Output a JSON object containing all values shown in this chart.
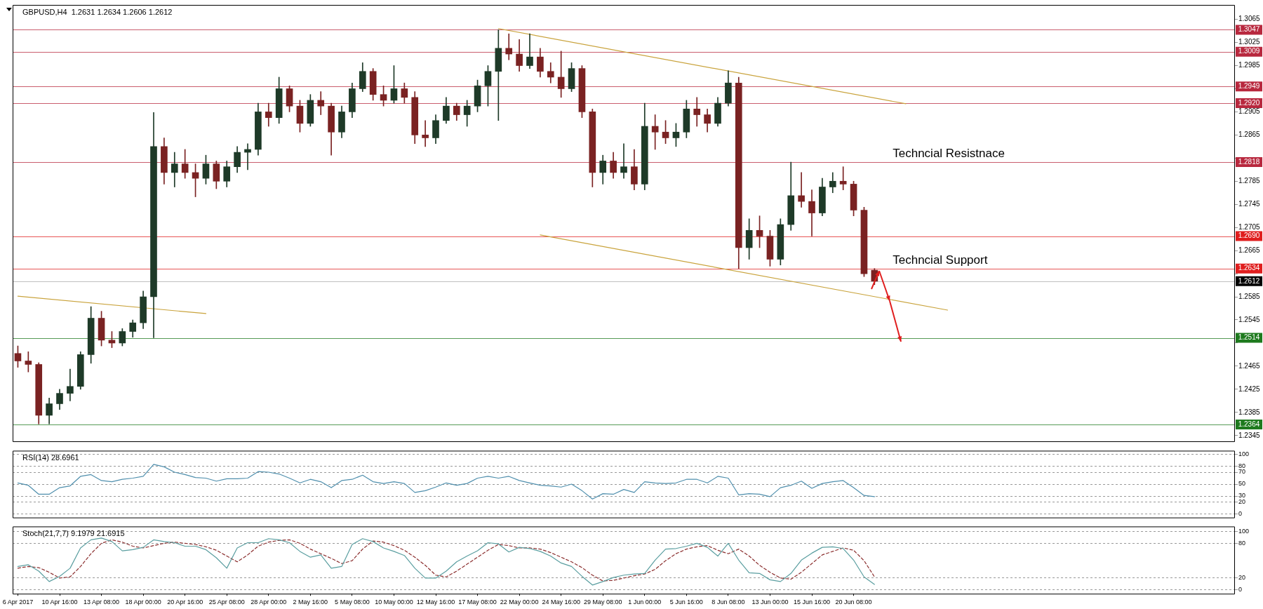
{
  "chart_data": [
    {
      "type": "candlestick",
      "title": "GBPUSD,H4  1.2631 1.2634 1.2606 1.2612",
      "categories": [
        null,
        null,
        null,
        null,
        null,
        null,
        null,
        null,
        null,
        null,
        null,
        null,
        null,
        null,
        null,
        null,
        null,
        null,
        null,
        null,
        null,
        null,
        null,
        null,
        null,
        null,
        null,
        null,
        null,
        null,
        null,
        null,
        null,
        null,
        null,
        null,
        null,
        null,
        null,
        null,
        null,
        null,
        null,
        null,
        null,
        null,
        null,
        null,
        null,
        null,
        null,
        null,
        null,
        null,
        null,
        null,
        null,
        null,
        null,
        null,
        null,
        null,
        null,
        null,
        null,
        null,
        null,
        null,
        null,
        null,
        null,
        null,
        null,
        null,
        null,
        null,
        null,
        null,
        null,
        null,
        null,
        null,
        null,
        null,
        null,
        null,
        null,
        null,
        null,
        null,
        null,
        null,
        null,
        null,
        null,
        null,
        null,
        null,
        null,
        null,
        null,
        null,
        null,
        null,
        null,
        null,
        null,
        null,
        null,
        null,
        null,
        null,
        null,
        null,
        null,
        null,
        null
      ],
      "ohlc": [
        [
          1.2487,
          1.25,
          1.2463,
          1.2474
        ],
        [
          1.2474,
          1.249,
          1.2455,
          1.2468
        ],
        [
          1.2468,
          1.2471,
          1.2365,
          1.238
        ],
        [
          1.238,
          1.241,
          1.2365,
          1.24
        ],
        [
          1.24,
          1.2425,
          1.239,
          1.2418
        ],
        [
          1.2418,
          1.246,
          1.2405,
          1.243
        ],
        [
          1.243,
          1.249,
          1.2425,
          1.2485
        ],
        [
          1.2485,
          1.2568,
          1.247,
          1.2548
        ],
        [
          1.2548,
          1.256,
          1.25,
          1.251
        ],
        [
          1.251,
          1.2525,
          1.2497,
          1.2505
        ],
        [
          1.2505,
          1.253,
          1.25,
          1.2525
        ],
        [
          1.2525,
          1.2545,
          1.2515,
          1.254
        ],
        [
          1.254,
          1.2595,
          1.253,
          1.2585
        ],
        [
          1.2585,
          1.2904,
          1.2514,
          1.2845
        ],
        [
          1.2845,
          1.286,
          1.278,
          1.28
        ],
        [
          1.28,
          1.2835,
          1.2775,
          1.2815
        ],
        [
          1.2815,
          1.284,
          1.279,
          1.28
        ],
        [
          1.28,
          1.2815,
          1.2758,
          1.279
        ],
        [
          1.279,
          1.283,
          1.278,
          1.2815
        ],
        [
          1.2815,
          1.282,
          1.2772,
          1.2785
        ],
        [
          1.2785,
          1.282,
          1.2775,
          1.281
        ],
        [
          1.281,
          1.2845,
          1.28,
          1.2835
        ],
        [
          1.2835,
          1.285,
          1.2805,
          1.284
        ],
        [
          1.284,
          1.292,
          1.283,
          1.2905
        ],
        [
          1.2905,
          1.292,
          1.288,
          1.2895
        ],
        [
          1.2895,
          1.2965,
          1.2885,
          1.2945
        ],
        [
          1.2945,
          1.295,
          1.2905,
          1.2915
        ],
        [
          1.2915,
          1.2925,
          1.287,
          1.2885
        ],
        [
          1.2885,
          1.2935,
          1.288,
          1.2925
        ],
        [
          1.2925,
          1.294,
          1.29,
          1.2915
        ],
        [
          1.2915,
          1.292,
          1.283,
          1.287
        ],
        [
          1.287,
          1.2915,
          1.286,
          1.2905
        ],
        [
          1.2905,
          1.2955,
          1.2895,
          1.2945
        ],
        [
          1.2945,
          1.299,
          1.294,
          1.2975
        ],
        [
          1.2975,
          1.298,
          1.2925,
          1.2935
        ],
        [
          1.2935,
          1.295,
          1.2915,
          1.2925
        ],
        [
          1.2925,
          1.2985,
          1.292,
          1.2945
        ],
        [
          1.2945,
          1.2955,
          1.292,
          1.293
        ],
        [
          1.293,
          1.294,
          1.285,
          1.2865
        ],
        [
          1.2865,
          1.289,
          1.2845,
          1.286
        ],
        [
          1.286,
          1.29,
          1.285,
          1.289
        ],
        [
          1.289,
          1.293,
          1.2885,
          1.2915
        ],
        [
          1.2915,
          1.292,
          1.289,
          1.29
        ],
        [
          1.29,
          1.2925,
          1.288,
          1.2915
        ],
        [
          1.2915,
          1.296,
          1.2905,
          1.295
        ],
        [
          1.295,
          1.2985,
          1.2915,
          1.2975
        ],
        [
          1.2975,
          1.3047,
          1.289,
          1.3015
        ],
        [
          1.3015,
          1.304,
          1.2995,
          1.3005
        ],
        [
          1.3005,
          1.303,
          1.2975,
          1.2985
        ],
        [
          1.2985,
          1.304,
          1.298,
          1.3
        ],
        [
          1.3,
          1.3015,
          1.2965,
          1.2975
        ],
        [
          1.2975,
          1.299,
          1.2955,
          1.2965
        ],
        [
          1.2965,
          1.301,
          1.293,
          1.2945
        ],
        [
          1.2945,
          1.299,
          1.294,
          1.298
        ],
        [
          1.298,
          1.2985,
          1.2895,
          1.2905
        ],
        [
          1.2905,
          1.291,
          1.2775,
          1.28
        ],
        [
          1.28,
          1.283,
          1.278,
          1.282
        ],
        [
          1.282,
          1.2835,
          1.279,
          1.28
        ],
        [
          1.28,
          1.285,
          1.279,
          1.281
        ],
        [
          1.281,
          1.284,
          1.277,
          1.278
        ],
        [
          1.278,
          1.292,
          1.277,
          1.288
        ],
        [
          1.288,
          1.29,
          1.284,
          1.287
        ],
        [
          1.287,
          1.289,
          1.285,
          1.286
        ],
        [
          1.286,
          1.2885,
          1.2845,
          1.287
        ],
        [
          1.287,
          1.2925,
          1.286,
          1.291
        ],
        [
          1.291,
          1.293,
          1.288,
          1.29
        ],
        [
          1.29,
          1.291,
          1.287,
          1.2885
        ],
        [
          1.2885,
          1.293,
          1.288,
          1.292
        ],
        [
          1.292,
          1.2976,
          1.2915,
          1.2955
        ],
        [
          1.2955,
          1.2965,
          1.2634,
          1.267
        ],
        [
          1.267,
          1.272,
          1.265,
          1.27
        ],
        [
          1.27,
          1.2725,
          1.267,
          1.269
        ],
        [
          1.269,
          1.27,
          1.2638,
          1.265
        ],
        [
          1.265,
          1.272,
          1.264,
          1.271
        ],
        [
          1.271,
          1.2818,
          1.27,
          1.276
        ],
        [
          1.276,
          1.28,
          1.274,
          1.275
        ],
        [
          1.275,
          1.277,
          1.269,
          1.273
        ],
        [
          1.273,
          1.279,
          1.2725,
          1.2775
        ],
        [
          1.2775,
          1.28,
          1.2765,
          1.2785
        ],
        [
          1.2785,
          1.281,
          1.277,
          1.278
        ],
        [
          1.278,
          1.2785,
          1.2725,
          1.2735
        ],
        [
          1.2735,
          1.274,
          1.262,
          1.2625
        ],
        [
          1.2631,
          1.2634,
          1.2606,
          1.2612
        ],
        null,
        null,
        null,
        null,
        null,
        null,
        null,
        null,
        null,
        null,
        null,
        null,
        null,
        null,
        null,
        null,
        null,
        null,
        null,
        null,
        null,
        null,
        null,
        null,
        null,
        null,
        null,
        null,
        null,
        null,
        null,
        null,
        null,
        null
      ],
      "colors": [
        "#7a2222",
        "#7a2222",
        "#7a2222",
        "#1e3a28",
        "#1e3a28",
        "#1e3a28",
        "#1e3a28",
        "#1e3a28",
        "#7a2222",
        "#7a2222",
        "#1e3a28",
        "#1e3a28",
        "#1e3a28",
        "#1e3a28",
        "#7a2222",
        "#1e3a28",
        "#7a2222",
        "#7a2222",
        "#1e3a28",
        "#7a2222",
        "#1e3a28",
        "#1e3a28",
        "#1e3a28",
        "#1e3a28",
        "#7a2222",
        "#1e3a28",
        "#7a2222",
        "#7a2222",
        "#1e3a28",
        "#7a2222",
        "#7a2222",
        "#1e3a28",
        "#1e3a28",
        "#1e3a28",
        "#7a2222",
        "#7a2222",
        "#1e3a28",
        "#7a2222",
        "#7a2222",
        "#7a2222",
        "#1e3a28",
        "#1e3a28",
        "#7a2222",
        "#1e3a28",
        "#1e3a28",
        "#1e3a28",
        "#1e3a28",
        "#7a2222",
        "#7a2222",
        "#1e3a28",
        "#7a2222",
        "#7a2222",
        "#7a2222",
        "#1e3a28",
        "#7a2222",
        "#7a2222",
        "#1e3a28",
        "#7a2222",
        "#1e3a28",
        "#7a2222",
        "#1e3a28",
        "#7a2222",
        "#7a2222",
        "#1e3a28",
        "#1e3a28",
        "#7a2222",
        "#7a2222",
        "#1e3a28",
        "#1e3a28",
        "#7a2222",
        "#1e3a28",
        "#7a2222",
        "#7a2222",
        "#1e3a28",
        "#1e3a28",
        "#7a2222",
        "#7a2222",
        "#1e3a28",
        "#1e3a28",
        "#7a2222",
        "#7a2222",
        "#7a2222",
        "#7a2222",
        null,
        null,
        null,
        null,
        null,
        null,
        null,
        null,
        null,
        null,
        null,
        null,
        null,
        null,
        null,
        null,
        null,
        null,
        null,
        null,
        null,
        null,
        null,
        null,
        null,
        null,
        null,
        null,
        null,
        null,
        null,
        null,
        null,
        null
      ],
      "series": [
        {
          "type": "line",
          "color": "#c9a33c",
          "values": [
            null,
            null,
            null,
            null,
            null,
            null,
            null,
            null,
            null,
            null,
            null,
            null,
            null,
            null,
            null,
            null,
            null,
            null,
            null,
            null,
            null,
            null,
            null,
            null,
            null,
            null,
            null,
            null,
            null,
            null,
            null,
            null,
            null,
            null,
            null,
            null,
            null,
            null,
            null,
            null,
            null,
            null,
            null,
            null,
            null,
            null,
            1.3049,
            null,
            null,
            null,
            null,
            null,
            null,
            null,
            null,
            null,
            null,
            null,
            null,
            null,
            null,
            null,
            null,
            null,
            null,
            null,
            null,
            null,
            null,
            null,
            null,
            null,
            null,
            null,
            null,
            null,
            null,
            null,
            null,
            null,
            null,
            null,
            null,
            null,
            null,
            1.2919,
            null,
            null,
            null,
            null,
            null,
            null,
            null,
            null,
            null,
            null,
            null,
            null,
            null,
            null,
            null,
            null,
            null,
            null,
            null,
            null,
            null,
            null,
            null,
            null,
            null,
            null,
            null,
            null,
            null,
            null,
            null
          ]
        },
        {
          "type": "line",
          "color": "#c9a33c",
          "values": [
            null,
            null,
            null,
            null,
            null,
            null,
            null,
            null,
            null,
            null,
            null,
            null,
            null,
            null,
            null,
            null,
            null,
            null,
            null,
            null,
            null,
            null,
            null,
            null,
            null,
            null,
            null,
            null,
            null,
            null,
            null,
            null,
            null,
            null,
            null,
            null,
            null,
            null,
            null,
            null,
            null,
            null,
            null,
            null,
            null,
            null,
            null,
            null,
            null,
            null,
            1.2692,
            null,
            null,
            null,
            null,
            null,
            null,
            null,
            null,
            null,
            null,
            null,
            null,
            null,
            null,
            null,
            null,
            null,
            null,
            null,
            null,
            null,
            null,
            null,
            null,
            null,
            null,
            null,
            null,
            null,
            null,
            null,
            null,
            null,
            null,
            null,
            null,
            null,
            null,
            1.2562,
            null,
            null,
            null,
            null,
            null,
            null,
            null,
            null,
            null,
            null,
            null,
            null,
            null,
            null,
            null,
            null,
            null,
            null,
            null,
            null,
            null,
            null,
            null,
            null,
            null,
            null,
            null
          ]
        },
        {
          "type": "line",
          "color": "#c9a33c",
          "values": [
            1.2586,
            null,
            null,
            null,
            null,
            null,
            null,
            null,
            null,
            null,
            null,
            null,
            null,
            null,
            null,
            null,
            null,
            null,
            1.2556,
            null,
            null,
            null,
            null,
            null,
            null,
            null,
            null,
            null,
            null,
            null,
            null,
            null,
            null,
            null,
            null,
            null,
            null,
            null,
            null,
            null,
            null,
            null,
            null,
            null,
            null,
            null,
            null,
            null,
            null,
            null,
            null,
            null,
            null,
            null,
            null,
            null,
            null,
            null,
            null,
            null,
            null,
            null,
            null,
            null,
            null,
            null,
            null,
            null,
            null,
            null,
            null,
            null,
            null,
            null,
            null,
            null,
            null,
            null,
            null,
            null,
            null,
            null,
            null,
            null,
            null,
            null,
            null,
            null,
            null,
            null,
            null,
            null,
            null,
            null,
            null,
            null,
            null,
            null,
            null,
            null,
            null,
            null,
            null,
            null,
            null,
            null,
            null,
            null,
            null,
            null,
            null,
            null,
            null,
            null,
            null,
            null,
            null
          ]
        }
      ],
      "ylim": [
        1.2335,
        1.309
      ],
      "yticks": [
        1.3065,
        1.3025,
        1.2985,
        {
          "value": 1.2945,
          "label": null
        },
        1.2905,
        1.2865,
        {
          "value": 1.2825,
          "label": null
        },
        1.2785,
        1.2745,
        1.2705,
        1.2665,
        {
          "value": 1.2625,
          "label": null
        },
        1.2585,
        1.2545,
        {
          "value": 1.2505,
          "label": null
        },
        1.2465,
        1.2425,
        1.2385,
        1.2345
      ],
      "tick_labels": "y",
      "ref_lines": [
        {
          "axis": "y",
          "value": 1.3047,
          "label": "1.3047",
          "color": "#b8283e"
        },
        {
          "axis": "y",
          "value": 1.3009,
          "label": "1.3009",
          "color": "#b8283e"
        },
        {
          "axis": "y",
          "value": 1.2949,
          "label": "1.2949",
          "color": "#b8283e"
        },
        {
          "axis": "y",
          "value": 1.292,
          "label": "1.2920",
          "color": "#b8283e"
        },
        {
          "axis": "y",
          "value": 1.2818,
          "label": "1.2818",
          "color": "#b8283e"
        },
        {
          "axis": "y",
          "value": 1.269,
          "label": "1.2690",
          "color": "#e01e1e"
        },
        {
          "axis": "y",
          "value": 1.2634,
          "label": "1.2634",
          "color": "#e01e1e"
        },
        {
          "axis": "y",
          "value": 1.2612,
          "label": "1.2612",
          "color": "#000000"
        },
        {
          "axis": "y",
          "value": 1.2514,
          "label": "1.2514",
          "color": "#1e7a1e"
        },
        {
          "axis": "y",
          "value": 1.2364,
          "label": "1.2364",
          "color": "#1e7a1e"
        }
      ],
      "annotations": [
        {
          "text": "Techncial Resistnace",
          "y": 1.2818
        },
        {
          "text": "Techncial Support",
          "y": 1.2634
        }
      ]
    },
    {
      "type": "line",
      "title": "RSI(14) 28.6961",
      "categories": [
        null,
        null,
        null,
        null,
        null,
        null,
        null,
        null,
        null,
        null,
        null,
        null,
        null,
        null,
        null,
        null,
        null,
        null,
        null,
        null,
        null,
        null,
        null,
        null,
        null,
        null,
        null,
        null,
        null,
        null,
        null,
        null,
        null,
        null,
        null,
        null,
        null,
        null,
        null,
        null,
        null,
        null,
        null,
        null,
        null,
        null,
        null,
        null,
        null,
        null,
        null,
        null,
        null,
        null,
        null,
        null,
        null,
        null,
        null,
        null,
        null,
        null,
        null,
        null,
        null,
        null,
        null,
        null,
        null,
        null,
        null,
        null,
        null,
        null,
        null,
        null,
        null,
        null,
        null,
        null,
        null,
        null,
        null,
        null,
        null,
        null,
        null,
        null,
        null,
        null,
        null,
        null,
        null,
        null,
        null,
        null,
        null,
        null,
        null,
        null,
        null,
        null,
        null,
        null,
        null,
        null,
        null,
        null,
        null,
        null,
        null,
        null,
        null,
        null,
        null,
        null,
        null
      ],
      "series": [
        {
          "color": "#4f8fad",
          "values": [
            52,
            48,
            33,
            33,
            44,
            47,
            63,
            66,
            56,
            54,
            58,
            60,
            63,
            83,
            79,
            70,
            66,
            61,
            60,
            55,
            59,
            59,
            60,
            71,
            70,
            67,
            60,
            52,
            58,
            54,
            44,
            56,
            58,
            65,
            54,
            51,
            54,
            51,
            36,
            39,
            45,
            52,
            48,
            51,
            60,
            63,
            60,
            63,
            56,
            52,
            48,
            47,
            45,
            50,
            39,
            25,
            34,
            33,
            41,
            36,
            54,
            52,
            51,
            52,
            58,
            58,
            52,
            63,
            60,
            32,
            34,
            33,
            29,
            44,
            48,
            55,
            43,
            51,
            54,
            56,
            44,
            31,
            29,
            null,
            null,
            null,
            null,
            null,
            null,
            null,
            null,
            null,
            null,
            null,
            null,
            null,
            null,
            null,
            null,
            null,
            null,
            null,
            null,
            null,
            null,
            null,
            null,
            null,
            null,
            null,
            null,
            null,
            null,
            null,
            null,
            null,
            null
          ]
        }
      ],
      "ylim": [
        -6,
        106
      ],
      "yticks": [
        0,
        20,
        30,
        50,
        70,
        80,
        100
      ],
      "grid": "y",
      "tick_labels": "y"
    },
    {
      "type": "line",
      "title": "Stoch(21,7,7) 9.1979 21.6915",
      "categories": [
        "6 Apr 2017",
        null,
        null,
        null,
        "10 Apr 16:00",
        null,
        null,
        null,
        "13 Apr 08:00",
        null,
        null,
        null,
        "18 Apr 00:00",
        null,
        null,
        null,
        "20 Apr 16:00",
        null,
        null,
        null,
        "25 Apr 08:00",
        null,
        null,
        null,
        "28 Apr 00:00",
        null,
        null,
        null,
        "2 May 16:00",
        null,
        null,
        null,
        "5 May 08:00",
        null,
        null,
        null,
        "10 May 00:00",
        null,
        null,
        null,
        "12 May 16:00",
        null,
        null,
        null,
        "17 May 08:00",
        null,
        null,
        null,
        "22 May 00:00",
        null,
        null,
        null,
        "24 May 16:00",
        null,
        null,
        null,
        "29 May 08:00",
        null,
        null,
        null,
        "1 Jun 00:00",
        null,
        null,
        null,
        "5 Jun 16:00",
        null,
        null,
        null,
        "8 Jun 08:00",
        null,
        null,
        null,
        "13 Jun 00:00",
        null,
        null,
        null,
        "15 Jun 16:00",
        null,
        null,
        null,
        "20 Jun 08:00",
        null,
        null,
        null,
        null,
        null,
        null,
        null,
        null,
        null,
        null,
        null,
        null,
        null,
        null,
        null,
        null,
        null,
        null,
        null,
        null,
        null,
        null,
        null,
        null,
        null,
        null,
        null,
        null,
        null,
        null,
        null,
        null,
        null,
        null,
        null,
        null
      ],
      "series": [
        {
          "color": "#5a9ea0",
          "values": [
            40,
            43,
            32,
            14,
            23,
            37,
            72,
            86,
            89,
            83,
            67,
            69,
            73,
            86,
            83,
            81,
            75,
            75,
            69,
            55,
            37,
            72,
            81,
            81,
            88,
            86,
            81,
            66,
            56,
            60,
            37,
            40,
            78,
            88,
            83,
            72,
            66,
            59,
            37,
            20,
            20,
            32,
            48,
            58,
            67,
            81,
            79,
            65,
            73,
            71,
            66,
            58,
            46,
            40,
            23,
            8,
            14,
            21,
            25,
            27,
            28,
            51,
            70,
            71,
            75,
            80,
            73,
            58,
            80,
            51,
            29,
            28,
            17,
            14,
            28,
            51,
            63,
            73,
            74,
            71,
            51,
            22,
            9,
            null,
            null,
            null,
            null,
            null,
            null,
            null,
            null,
            null,
            null,
            null,
            null,
            null,
            null,
            null,
            null,
            null,
            null,
            null,
            null,
            null,
            null,
            null,
            null,
            null,
            null,
            null,
            null,
            null,
            null,
            null,
            null,
            null,
            null
          ]
        },
        {
          "color": "#8b2e2e",
          "line_style": "dashed",
          "values": [
            37,
            40,
            38,
            30,
            20,
            22,
            40,
            62,
            80,
            86,
            82,
            75,
            72,
            76,
            80,
            82,
            80,
            78,
            74,
            68,
            58,
            48,
            60,
            75,
            82,
            85,
            86,
            80,
            70,
            62,
            54,
            45,
            50,
            70,
            84,
            82,
            76,
            68,
            56,
            42,
            25,
            22,
            32,
            44,
            56,
            68,
            78,
            76,
            72,
            72,
            70,
            64,
            56,
            48,
            38,
            25,
            15,
            16,
            20,
            24,
            27,
            35,
            50,
            62,
            70,
            74,
            76,
            68,
            62,
            70,
            58,
            42,
            30,
            20,
            18,
            30,
            45,
            60,
            66,
            72,
            68,
            50,
            22,
            null,
            null,
            null,
            null,
            null,
            null,
            null,
            null,
            null,
            null,
            null,
            null,
            null,
            null,
            null,
            null,
            null,
            null,
            null,
            null,
            null,
            null,
            null,
            null,
            null,
            null,
            null,
            null,
            null,
            null,
            null,
            null,
            null,
            null
          ]
        }
      ],
      "ylim": [
        -7,
        109
      ],
      "yticks": [
        0,
        20,
        80,
        100
      ],
      "grid": "y"
    }
  ]
}
